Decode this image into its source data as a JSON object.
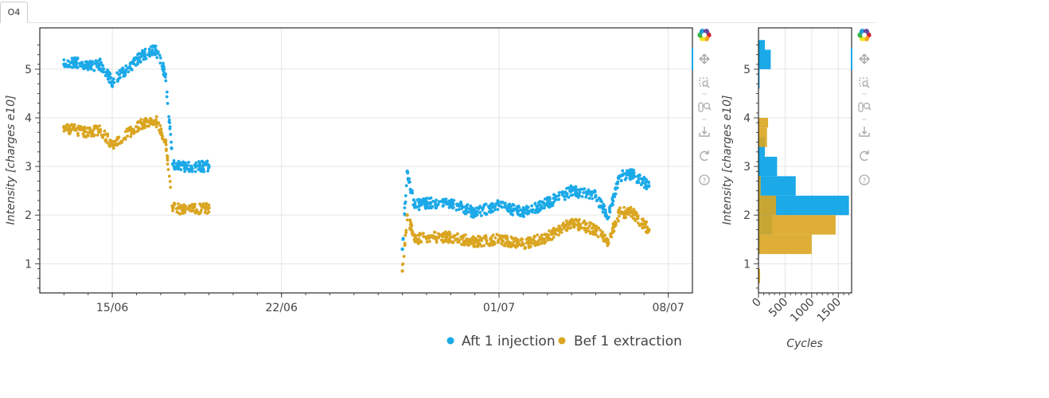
{
  "tab": {
    "label": "O4"
  },
  "main_plot": {
    "ylabel": "Intensity [charges e10]",
    "yticks": [
      "1",
      "2",
      "3",
      "4",
      "5"
    ],
    "xticks": [
      "15/06",
      "22/06",
      "01/07",
      "08/07"
    ]
  },
  "hist_plot": {
    "ylabel": "Intensity [charges e10]",
    "xlabel": "Cycles",
    "yticks": [
      "1",
      "2",
      "3",
      "4",
      "5"
    ],
    "xticks": [
      "0",
      "500",
      "1000",
      "1500"
    ]
  },
  "legend": {
    "items": [
      {
        "label": "Aft 1 injection",
        "color": "#1ba9e8"
      },
      {
        "label": "Bef 1 extraction",
        "color": "#daa520"
      }
    ]
  },
  "toolbar": {
    "tools": [
      "bokeh-logo-icon",
      "pan-icon",
      "box-zoom-icon",
      "wheel-zoom-icon",
      "save-icon",
      "reset-icon",
      "help-icon"
    ]
  },
  "chart_data": [
    {
      "type": "scatter",
      "xlabel": "",
      "ylabel": "Intensity [charges e10]",
      "x_axis": "date",
      "xlim": [
        "2023-06-12",
        "2023-07-09"
      ],
      "ylim": [
        0.4,
        5.85
      ],
      "grid": true,
      "legend_position": "bottom",
      "series": [
        {
          "name": "Aft 1 injection",
          "color": "#1ba9e8",
          "x": [
            "2023-06-13",
            "2023-06-13.5",
            "2023-06-14",
            "2023-06-14.5",
            "2023-06-15",
            "2023-06-16.3",
            "2023-06-16.8",
            "2023-06-17.2",
            "2023-06-17.5",
            "2023-06-18",
            "2023-06-19",
            "2023-06-27",
            "2023-06-27.2",
            "2023-06-27.5",
            "2023-06-28",
            "2023-06-29",
            "2023-06-30",
            "2023-07-01",
            "2023-07-02",
            "2023-07-03",
            "2023-07-04",
            "2023-07-05",
            "2023-07-05.5",
            "2023-07-06",
            "2023-07-06.5",
            "2023-07-07.2"
          ],
          "y": [
            5.1,
            5.15,
            5.05,
            5.1,
            4.75,
            5.3,
            5.4,
            4.9,
            3.05,
            3.0,
            3.0,
            1.3,
            2.9,
            2.2,
            2.25,
            2.25,
            2.05,
            2.2,
            2.05,
            2.25,
            2.5,
            2.4,
            1.95,
            2.8,
            2.85,
            2.6
          ]
        },
        {
          "name": "Bef 1 extraction",
          "color": "#daa520",
          "x": [
            "2023-06-13",
            "2023-06-13.5",
            "2023-06-14",
            "2023-06-14.5",
            "2023-06-15",
            "2023-06-16.3",
            "2023-06-16.8",
            "2023-06-17.2",
            "2023-06-17.5",
            "2023-06-18",
            "2023-06-19",
            "2023-06-27",
            "2023-06-27.2",
            "2023-06-27.5",
            "2023-06-28",
            "2023-06-29",
            "2023-06-30",
            "2023-07-01",
            "2023-07-02",
            "2023-07-03",
            "2023-07-04",
            "2023-07-05",
            "2023-07-05.5",
            "2023-07-06",
            "2023-07-06.5",
            "2023-07-07.2"
          ],
          "y": [
            3.8,
            3.75,
            3.7,
            3.75,
            3.45,
            3.9,
            3.95,
            3.5,
            2.15,
            2.1,
            2.15,
            0.85,
            2.0,
            1.5,
            1.55,
            1.55,
            1.45,
            1.5,
            1.4,
            1.55,
            1.85,
            1.7,
            1.45,
            2.05,
            2.05,
            1.7
          ]
        }
      ]
    },
    {
      "type": "bar",
      "orientation": "horizontal",
      "xlabel": "Cycles",
      "ylabel": "Intensity [charges e10]",
      "xlim": [
        0,
        1750
      ],
      "ylim": [
        0.4,
        5.85
      ],
      "series": [
        {
          "name": "Aft 1 injection",
          "color": "#1ba9e8",
          "bins": [
            [
              1.2,
              1.6
            ],
            [
              1.6,
              2.0
            ],
            [
              2.0,
              2.4
            ],
            [
              2.4,
              2.8
            ],
            [
              2.8,
              3.2
            ],
            [
              3.2,
              3.6
            ],
            [
              4.6,
              5.0
            ],
            [
              5.0,
              5.4
            ],
            [
              5.4,
              5.6
            ]
          ],
          "counts": [
            30,
            250,
            1700,
            700,
            350,
            120,
            20,
            230,
            120
          ]
        },
        {
          "name": "Bef 1 extraction",
          "color": "#daa520",
          "bins": [
            [
              0.6,
              0.9
            ],
            [
              1.2,
              1.6
            ],
            [
              1.6,
              2.0
            ],
            [
              2.0,
              2.4
            ],
            [
              2.4,
              2.8
            ],
            [
              3.4,
              3.8
            ],
            [
              3.8,
              4.0
            ]
          ],
          "counts": [
            30,
            1000,
            1450,
            330,
            40,
            160,
            180
          ]
        }
      ]
    }
  ]
}
